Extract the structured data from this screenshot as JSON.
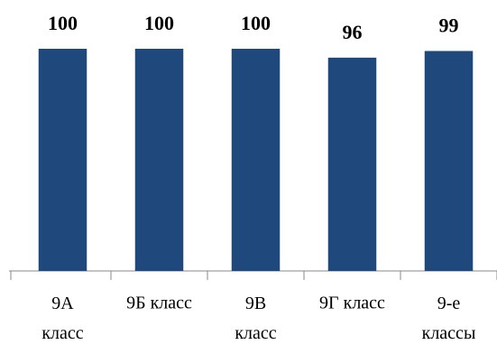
{
  "chart_data": {
    "type": "bar",
    "categories": [
      "9А класс",
      "9Б класс",
      "9В класс",
      "9Г класс",
      "9-е классы"
    ],
    "values": [
      100,
      100,
      100,
      96,
      99
    ],
    "color": "#1f497d",
    "ylim": [
      0,
      100
    ]
  }
}
